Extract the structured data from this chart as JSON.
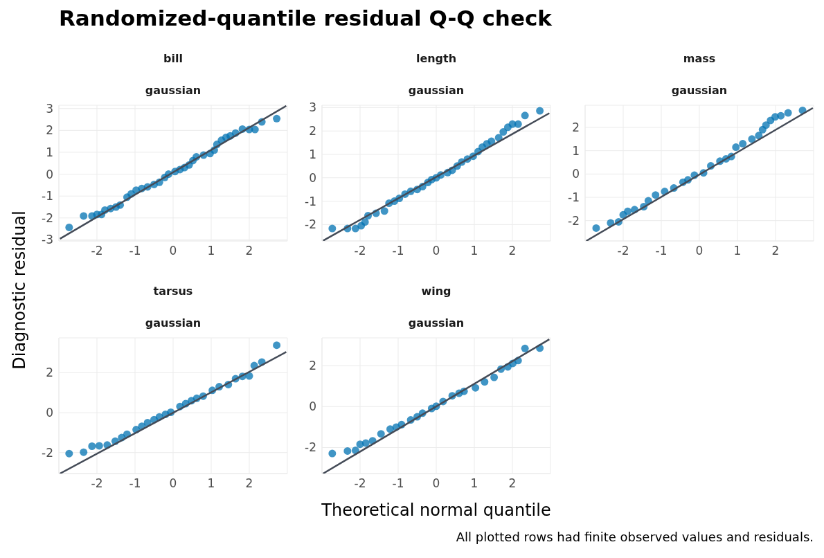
{
  "chart_data": [
    {
      "type": "other",
      "title": "Randomized-quantile residual Q-Q check",
      "xlabel": "Theoretical normal quantile",
      "ylabel": "Diagnostic residual",
      "annotations": [
        "All plotted rows had finite observed values and residuals."
      ]
    },
    {
      "type": "scatter",
      "title": "bill",
      "subtitle": "gaussian",
      "xlim": [
        -3,
        3
      ],
      "xticks": [
        -2,
        -1,
        0,
        1,
        2
      ],
      "ylim": [
        -3.05,
        3.15
      ],
      "yticks": [
        -3,
        -2,
        -1,
        0,
        1,
        2,
        3
      ],
      "grid": true,
      "marker": "circle",
      "series": [
        {
          "color": "#0072b2",
          "x": [
            -2.73,
            -2.35,
            -2.13,
            -2.0,
            -1.88,
            -1.79,
            -1.64,
            -1.5,
            -1.39,
            -1.21,
            -1.1,
            -0.97,
            -0.82,
            -0.67,
            -0.5,
            -0.36,
            -0.22,
            -0.12,
            0.05,
            0.18,
            0.3,
            0.42,
            0.52,
            0.61,
            0.8,
            0.97,
            1.08,
            1.15,
            1.27,
            1.39,
            1.5,
            1.64,
            1.82,
            2.0,
            2.15,
            2.33,
            2.72
          ],
          "values": [
            -2.43,
            -1.91,
            -1.91,
            -1.84,
            -1.84,
            -1.64,
            -1.57,
            -1.5,
            -1.41,
            -1.05,
            -0.9,
            -0.73,
            -0.65,
            -0.58,
            -0.47,
            -0.37,
            -0.15,
            0,
            0.12,
            0.21,
            0.3,
            0.42,
            0.62,
            0.79,
            0.87,
            0.94,
            1.1,
            1.36,
            1.55,
            1.68,
            1.75,
            1.88,
            2.06,
            2.04,
            2.04,
            2.39,
            2.54
          ]
        },
        {
          "type": "line",
          "marker": "none",
          "color": "#444b57",
          "x": [
            -2.97,
            2.97
          ],
          "values": [
            -2.95,
            3.12
          ]
        }
      ]
    },
    {
      "type": "scatter",
      "title": "length",
      "subtitle": "gaussian",
      "xlim": [
        -3,
        3
      ],
      "xticks": [
        -2,
        -1,
        0,
        1,
        2
      ],
      "ylim": [
        -2.7,
        3.1
      ],
      "yticks": [
        -2,
        -1,
        0,
        1,
        2,
        3
      ],
      "grid": true,
      "marker": "circle",
      "series": [
        {
          "color": "#0072b2",
          "x": [
            -2.73,
            -2.33,
            -2.12,
            -1.97,
            -1.87,
            -1.79,
            -1.58,
            -1.36,
            -1.24,
            -1.1,
            -0.97,
            -0.82,
            -0.67,
            -0.5,
            -0.36,
            -0.22,
            -0.12,
            0.0,
            0.12,
            0.3,
            0.42,
            0.55,
            0.67,
            0.82,
            0.97,
            1.1,
            1.21,
            1.33,
            1.45,
            1.64,
            1.76,
            1.88,
            2.0,
            2.15,
            2.33,
            2.72
          ],
          "values": [
            -2.17,
            -2.17,
            -2.17,
            -2.05,
            -1.89,
            -1.62,
            -1.52,
            -1.42,
            -1.09,
            -1.0,
            -0.88,
            -0.7,
            -0.58,
            -0.5,
            -0.38,
            -0.2,
            -0.08,
            0.0,
            0.12,
            0.22,
            0.32,
            0.5,
            0.67,
            0.8,
            0.92,
            1.12,
            1.31,
            1.45,
            1.56,
            1.71,
            1.96,
            2.16,
            2.29,
            2.29,
            2.66,
            2.86
          ]
        },
        {
          "type": "line",
          "marker": "none",
          "color": "#444b57",
          "x": [
            -2.97,
            2.97
          ],
          "values": [
            -2.69,
            2.76
          ]
        }
      ]
    },
    {
      "type": "scatter",
      "title": "mass",
      "subtitle": "gaussian",
      "xlim": [
        -3,
        3
      ],
      "xticks": [
        -2,
        -1,
        0,
        1,
        2
      ],
      "ylim": [
        -2.87,
        2.95
      ],
      "yticks": [
        -2,
        -1,
        0,
        1,
        2
      ],
      "grid": true,
      "marker": "circle",
      "series": [
        {
          "color": "#0072b2",
          "x": [
            -2.71,
            -2.33,
            -2.12,
            -2.0,
            -1.88,
            -1.7,
            -1.46,
            -1.34,
            -1.15,
            -0.91,
            -0.67,
            -0.43,
            -0.3,
            -0.13,
            0.11,
            0.3,
            0.54,
            0.7,
            0.84,
            0.96,
            1.14,
            1.38,
            1.56,
            1.66,
            1.75,
            1.87,
            1.99,
            2.14,
            2.33,
            2.71
          ],
          "values": [
            -2.32,
            -2.1,
            -2.05,
            -1.75,
            -1.6,
            -1.53,
            -1.4,
            -1.15,
            -0.9,
            -0.75,
            -0.6,
            -0.35,
            -0.25,
            -0.05,
            0.05,
            0.35,
            0.55,
            0.65,
            0.75,
            1.15,
            1.3,
            1.5,
            1.65,
            1.9,
            2.1,
            2.3,
            2.45,
            2.5,
            2.62,
            2.73
          ]
        },
        {
          "type": "line",
          "marker": "none",
          "color": "#444b57",
          "x": [
            -2.97,
            2.98
          ],
          "values": [
            -2.87,
            2.83
          ]
        }
      ]
    },
    {
      "type": "scatter",
      "title": "tarsus",
      "subtitle": "gaussian",
      "xlim": [
        -3,
        3
      ],
      "xticks": [
        -2,
        -1,
        0,
        1,
        2
      ],
      "ylim": [
        -3.05,
        3.75
      ],
      "yticks": [
        -2,
        0,
        2
      ],
      "grid": true,
      "marker": "circle",
      "series": [
        {
          "color": "#0072b2",
          "x": [
            -2.73,
            -2.35,
            -2.13,
            -1.94,
            -1.73,
            -1.52,
            -1.35,
            -1.21,
            -0.97,
            -0.82,
            -0.67,
            -0.5,
            -0.36,
            -0.2,
            -0.06,
            0.18,
            0.33,
            0.48,
            0.62,
            0.79,
            1.03,
            1.21,
            1.45,
            1.64,
            1.82,
            2.0,
            2.13,
            2.33,
            2.72
          ],
          "values": [
            -2.05,
            -1.98,
            -1.68,
            -1.66,
            -1.62,
            -1.43,
            -1.25,
            -1.08,
            -0.85,
            -0.68,
            -0.5,
            -0.35,
            -0.21,
            -0.08,
            0.02,
            0.31,
            0.45,
            0.6,
            0.72,
            0.83,
            1.12,
            1.3,
            1.41,
            1.7,
            1.82,
            1.84,
            2.36,
            2.54,
            3.38
          ]
        },
        {
          "type": "line",
          "marker": "none",
          "color": "#444b57",
          "x": [
            -2.97,
            2.97
          ],
          "values": [
            -3.05,
            3.04
          ]
        }
      ]
    },
    {
      "type": "scatter",
      "title": "wing",
      "subtitle": "gaussian",
      "xlim": [
        -3,
        3
      ],
      "xticks": [
        -2,
        -1,
        0,
        1,
        2
      ],
      "ylim": [
        -3.27,
        3.36
      ],
      "yticks": [
        -2,
        0,
        2
      ],
      "grid": true,
      "marker": "circle",
      "series": [
        {
          "color": "#0072b2",
          "x": [
            -2.73,
            -2.33,
            -2.12,
            -2.0,
            -1.85,
            -1.67,
            -1.45,
            -1.21,
            -1.05,
            -0.91,
            -0.67,
            -0.5,
            -0.36,
            -0.12,
            0.0,
            0.18,
            0.42,
            0.6,
            0.73,
            1.03,
            1.27,
            1.52,
            1.7,
            1.88,
            2.01,
            2.15,
            2.33,
            2.72
          ],
          "values": [
            -2.29,
            -2.17,
            -2.14,
            -1.84,
            -1.78,
            -1.67,
            -1.33,
            -1.1,
            -1.0,
            -0.88,
            -0.65,
            -0.5,
            -0.32,
            -0.09,
            0.02,
            0.25,
            0.53,
            0.65,
            0.75,
            0.92,
            1.21,
            1.43,
            1.83,
            1.94,
            2.11,
            2.25,
            2.84,
            2.86
          ]
        },
        {
          "type": "line",
          "marker": "none",
          "color": "#444b57",
          "x": [
            -2.97,
            2.97
          ],
          "values": [
            -3.27,
            3.29
          ]
        }
      ]
    }
  ]
}
